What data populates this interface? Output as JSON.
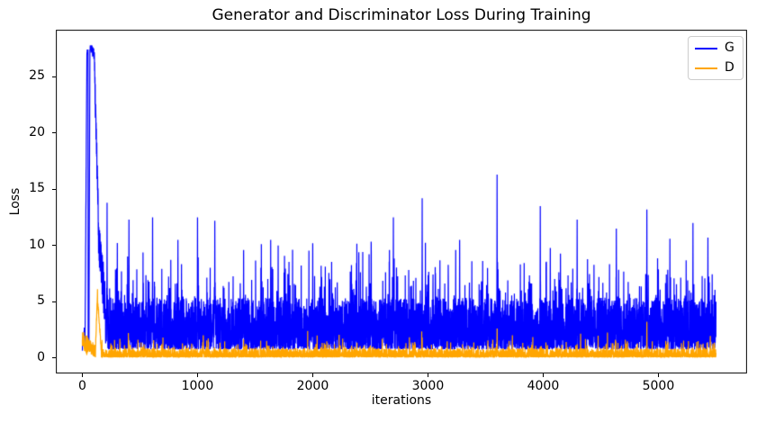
{
  "figure": {
    "background": "#ffffff"
  },
  "chart_data": {
    "type": "line",
    "title": "Generator and Discriminator Loss During Training",
    "xlabel": "iterations",
    "ylabel": "Loss",
    "xlim": [
      -230,
      5770
    ],
    "ylim": [
      -1.4,
      29.2
    ],
    "xticks": [
      0,
      1000,
      2000,
      3000,
      4000,
      5000
    ],
    "yticks": [
      0,
      5,
      10,
      15,
      20,
      25
    ],
    "grid": false,
    "axis_color": "#000000",
    "n_points": 5500,
    "legend": {
      "position": "upper right",
      "entries": [
        {
          "label": "G",
          "color": "#0000ff"
        },
        {
          "label": "D",
          "color": "#ffa500"
        }
      ]
    },
    "series": [
      {
        "name": "G",
        "color": "#0000ff",
        "seed": 1337,
        "vmax": 27.8,
        "description": "Generator loss per iteration: starts near 1-3, double spike peaking at ~27.8 around iterations 25-110, decays to ~5 by iteration 200, then dense noisy oscillation mostly between 0.8 and 7 with frequent spikes of 8-16 through iteration 5500.",
        "phases": [
          {
            "from": 0,
            "to": 24,
            "v0": 1.2,
            "v1": 2.2,
            "noise": 0.9
          },
          {
            "from": 25,
            "to": 40,
            "v0": 3.0,
            "v1": 27.5,
            "noise": 0.7
          },
          {
            "from": 41,
            "to": 50,
            "v0": 27.5,
            "v1": 26.8,
            "noise": 0.6
          },
          {
            "from": 51,
            "to": 58,
            "v0": 1.3,
            "v1": 1.3,
            "noise": 0.7
          },
          {
            "from": 59,
            "to": 66,
            "v0": 6.0,
            "v1": 27.8,
            "noise": 0.4
          },
          {
            "from": 67,
            "to": 105,
            "v0": 27.7,
            "v1": 27.0,
            "noise": 0.5
          },
          {
            "from": 106,
            "to": 140,
            "v0": 26.0,
            "v1": 12.0,
            "noise": 1.8
          },
          {
            "from": 141,
            "to": 199,
            "v0": 11.0,
            "v1": 4.5,
            "noise": 2.2
          }
        ],
        "noise": {
          "base": 0.75,
          "span": 4.6,
          "pow": 1.7,
          "spike_p": 0.1,
          "spike_base": 1.5,
          "spike_span": 4.0,
          "rare_p": 0.004,
          "rare_base": 3.0,
          "rare_span": 4.0,
          "min": 0.15,
          "max": 16.3
        },
        "peak_keypoints": [
          [
            215,
            13.8
          ],
          [
            405,
            12.3
          ],
          [
            610,
            12.5
          ],
          [
            830,
            10.5
          ],
          [
            1000,
            12.5
          ],
          [
            1150,
            12.2
          ],
          [
            1400,
            9.6
          ],
          [
            1700,
            10.0
          ],
          [
            2000,
            10.2
          ],
          [
            2400,
            9.4
          ],
          [
            2700,
            12.5
          ],
          [
            2950,
            14.2
          ],
          [
            3275,
            10.5
          ],
          [
            3600,
            16.3
          ],
          [
            3975,
            13.5
          ],
          [
            4295,
            12.3
          ],
          [
            4635,
            11.5
          ],
          [
            4900,
            13.2
          ],
          [
            5100,
            10.6
          ],
          [
            5300,
            12.0
          ],
          [
            5430,
            10.7
          ]
        ]
      },
      {
        "name": "D",
        "color": "#ffa500",
        "seed": 4242,
        "vmax": 6.1,
        "description": "Discriminator loss per iteration: starts near 1-2.5, spikes to ~6 around iteration 130, then stays mostly between 0.05 and 1.0 with occasional spikes of 1.2-3.2 through iteration 5500.",
        "phases": [
          {
            "from": 0,
            "to": 49,
            "v0": 1.5,
            "v1": 1.0,
            "noise": 0.9
          },
          {
            "from": 50,
            "to": 114,
            "v0": 1.1,
            "v1": 0.6,
            "noise": 0.6
          },
          {
            "from": 115,
            "to": 132,
            "v0": 0.8,
            "v1": 6.0,
            "noise": 0.3
          },
          {
            "from": 133,
            "to": 165,
            "v0": 5.2,
            "v1": 0.7,
            "noise": 0.35
          }
        ],
        "noise": {
          "base": 0.04,
          "span": 0.8,
          "pow": 2.4,
          "spike_p": 0.05,
          "spike_base": 0.3,
          "spike_span": 0.9,
          "rare_p": 0.006,
          "rare_base": 0.6,
          "rare_span": 1.0,
          "min": 0.02,
          "max": 6.0
        },
        "peak_keypoints": [
          [
            400,
            2.2
          ],
          [
            700,
            1.8
          ],
          [
            1050,
            2.0
          ],
          [
            1350,
            1.2
          ],
          [
            1600,
            1.5
          ],
          [
            2100,
            1.3
          ],
          [
            2500,
            1.1
          ],
          [
            2950,
            1.8
          ],
          [
            3300,
            1.2
          ],
          [
            3600,
            2.6
          ],
          [
            4200,
            1.4
          ],
          [
            4600,
            1.3
          ],
          [
            4900,
            3.2
          ],
          [
            5200,
            1.3
          ],
          [
            5450,
            1.7
          ]
        ]
      }
    ]
  }
}
